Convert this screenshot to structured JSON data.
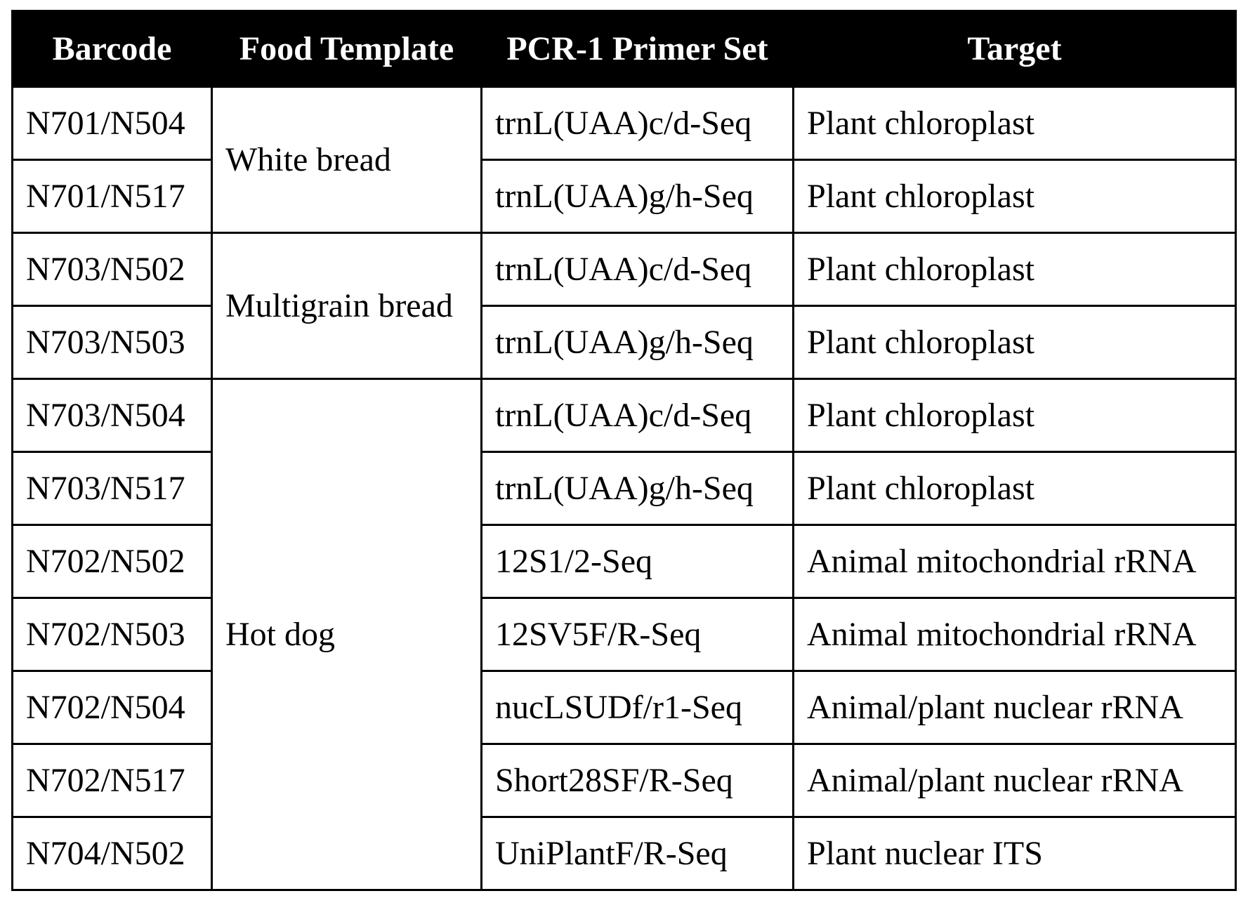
{
  "table": {
    "headers": [
      "Barcode",
      "Food Template",
      "PCR-1 Primer Set",
      "Target"
    ],
    "groups": [
      {
        "food_template": "White bread",
        "rows": [
          {
            "barcode": "N701/N504",
            "primer_set": "trnL(UAA)c/d-Seq",
            "target": "Plant chloroplast"
          },
          {
            "barcode": "N701/N517",
            "primer_set": "trnL(UAA)g/h-Seq",
            "target": "Plant chloroplast"
          }
        ]
      },
      {
        "food_template": "Multigrain bread",
        "rows": [
          {
            "barcode": "N703/N502",
            "primer_set": "trnL(UAA)c/d-Seq",
            "target": "Plant chloroplast"
          },
          {
            "barcode": "N703/N503",
            "primer_set": "trnL(UAA)g/h-Seq",
            "target": "Plant chloroplast"
          }
        ]
      },
      {
        "food_template": "Hot dog",
        "rows": [
          {
            "barcode": "N703/N504",
            "primer_set": "trnL(UAA)c/d-Seq",
            "target": "Plant chloroplast"
          },
          {
            "barcode": "N703/N517",
            "primer_set": "trnL(UAA)g/h-Seq",
            "target": "Plant chloroplast"
          },
          {
            "barcode": "N702/N502",
            "primer_set": "12S1/2-Seq",
            "target": "Animal mitochondrial rRNA"
          },
          {
            "barcode": "N702/N503",
            "primer_set": "12SV5F/R-Seq",
            "target": "Animal mitochondrial rRNA"
          },
          {
            "barcode": "N702/N504",
            "primer_set": "nucLSUDf/r1-Seq",
            "target": "Animal/plant nuclear rRNA"
          },
          {
            "barcode": "N702/N517",
            "primer_set": "Short28SF/R-Seq",
            "target": "Animal/plant nuclear rRNA"
          },
          {
            "barcode": "N704/N502",
            "primer_set": "UniPlantF/R-Seq",
            "target": "Plant nuclear ITS"
          }
        ]
      }
    ]
  }
}
